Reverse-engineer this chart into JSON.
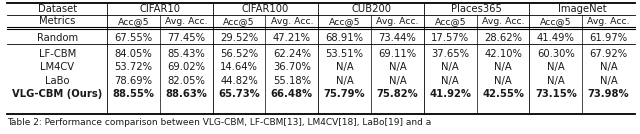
{
  "header1_left": "Dataset",
  "header1_spans": [
    "CIFAR10",
    "CIFAR100",
    "CUB200",
    "Places365",
    "ImageNet"
  ],
  "header2_left": "Metrics",
  "header2_metrics": [
    "Acc@5",
    "Avg. Acc.",
    "Acc@5",
    "Avg. Acc.",
    "Acc@5",
    "Avg. Acc.",
    "Acc@5",
    "Avg. Acc.",
    "Acc@5",
    "Avg. Acc."
  ],
  "rows": [
    [
      "Random",
      "67.55%",
      "77.45%",
      "29.52%",
      "47.21%",
      "68.91%",
      "73.44%",
      "17.57%",
      "28.62%",
      "41.49%",
      "61.97%"
    ],
    [
      "LF-CBM",
      "84.05%",
      "85.43%",
      "56.52%",
      "62.24%",
      "53.51%",
      "69.11%",
      "37.65%",
      "42.10%",
      "60.30%",
      "67.92%"
    ],
    [
      "LM4CV",
      "53.72%",
      "69.02%",
      "14.64%",
      "36.70%",
      "N/A",
      "N/A",
      "N/A",
      "N/A",
      "N/A",
      "N/A"
    ],
    [
      "LaBo",
      "78.69%",
      "82.05%",
      "44.82%",
      "55.18%",
      "N/A",
      "N/A",
      "N/A",
      "N/A",
      "N/A",
      "N/A"
    ],
    [
      "VLG-CBM (Ours)",
      "88.55%",
      "88.63%",
      "65.73%",
      "66.48%",
      "75.79%",
      "75.82%",
      "41.92%",
      "42.55%",
      "73.15%",
      "73.98%"
    ]
  ],
  "caption": "Table 2: Performance comparison between VLG-CBM, LF-CBM[13], LM4CV[18], LaBo[19] and a",
  "bold_row": 4,
  "bg_color": "#ffffff",
  "text_color": "#1a1a1a",
  "font_size": 7.2,
  "caption_font_size": 6.5
}
